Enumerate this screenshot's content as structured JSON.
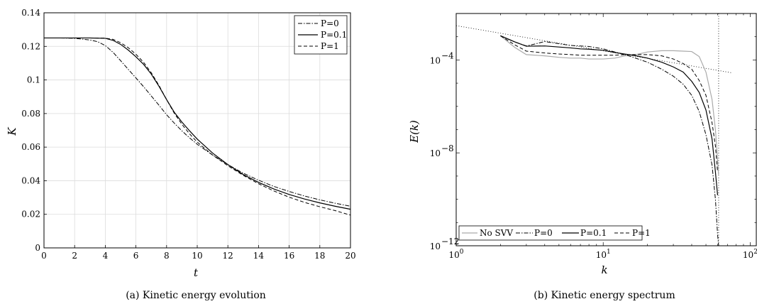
{
  "chart_data": [
    {
      "type": "line",
      "caption": "(a)  Kinetic energy evolution",
      "title": "",
      "xlabel": "t",
      "ylabel": "K",
      "xlim": [
        0,
        20
      ],
      "ylim": [
        0,
        0.14
      ],
      "xticks": [
        0,
        2,
        4,
        6,
        8,
        10,
        12,
        14,
        16,
        18,
        20
      ],
      "yticks": [
        0,
        0.02,
        0.04,
        0.06,
        0.08,
        0.1,
        0.12,
        0.14
      ],
      "xtick_labels": [
        "0",
        "2",
        "4",
        "6",
        "8",
        "10",
        "12",
        "14",
        "16",
        "18",
        "20"
      ],
      "ytick_labels": [
        "0",
        "0.02",
        "0.04",
        "0.06",
        "0.08",
        "0.1",
        "0.12",
        "0.14"
      ],
      "grid": true,
      "legend": "top-right",
      "series": [
        {
          "name": "P=0",
          "style": "dashdot",
          "x": [
            0,
            1,
            2,
            3,
            3.5,
            4,
            4.5,
            5,
            5.5,
            6,
            6.5,
            7,
            7.5,
            8,
            8.5,
            9,
            9.5,
            10,
            11,
            12,
            13,
            14,
            15,
            16,
            17,
            18,
            19,
            20
          ],
          "y": [
            0.125,
            0.125,
            0.1248,
            0.1238,
            0.1228,
            0.1205,
            0.1165,
            0.1115,
            0.1063,
            0.1012,
            0.096,
            0.0905,
            0.085,
            0.0793,
            0.0743,
            0.0697,
            0.0655,
            0.0617,
            0.0553,
            0.0496,
            0.0445,
            0.0403,
            0.0366,
            0.0336,
            0.0309,
            0.0286,
            0.0266,
            0.0248
          ]
        },
        {
          "name": "P=0.1",
          "style": "solid",
          "x": [
            0,
            1,
            2,
            3,
            4,
            4.5,
            5,
            5.5,
            6,
            6.5,
            7,
            7.5,
            8,
            8.5,
            9,
            9.5,
            10,
            11,
            12,
            13,
            14,
            15,
            16,
            17,
            18,
            19,
            20
          ],
          "y": [
            0.125,
            0.125,
            0.125,
            0.125,
            0.1248,
            0.1236,
            0.1212,
            0.1178,
            0.1138,
            0.1093,
            0.1035,
            0.0963,
            0.0883,
            0.0808,
            0.0749,
            0.0697,
            0.0648,
            0.0565,
            0.0496,
            0.0437,
            0.039,
            0.0351,
            0.0318,
            0.0291,
            0.0268,
            0.0248,
            0.023
          ]
        },
        {
          "name": "P=1",
          "style": "dashed",
          "x": [
            0,
            1,
            2,
            3,
            4,
            4.5,
            5,
            5.5,
            6,
            6.5,
            7,
            7.5,
            8,
            8.5,
            9,
            9.5,
            10,
            11,
            12,
            13,
            14,
            15,
            16,
            17,
            18,
            19,
            20
          ],
          "y": [
            0.125,
            0.125,
            0.125,
            0.125,
            0.1249,
            0.1242,
            0.1222,
            0.1192,
            0.1153,
            0.1105,
            0.1043,
            0.0968,
            0.0883,
            0.0802,
            0.0736,
            0.0679,
            0.063,
            0.0553,
            0.0489,
            0.0432,
            0.0382,
            0.0339,
            0.0302,
            0.0271,
            0.0245,
            0.0222,
            0.0195
          ]
        }
      ]
    },
    {
      "type": "line",
      "caption": "(b)  Kinetic energy spectrum",
      "title": "",
      "xlabel": "k",
      "ylabel": "E(k)",
      "xscale": "log",
      "yscale": "log",
      "xlim": [
        1,
        110
      ],
      "ylim": [
        1e-12,
        0.01
      ],
      "xticks": [
        1,
        10,
        100
      ],
      "yticks": [
        1e-12,
        1e-08,
        0.0001
      ],
      "xtick_labels": [
        {
          "base": "10",
          "exp": "0"
        },
        {
          "base": "10",
          "exp": "1"
        },
        {
          "base": "10",
          "exp": "2"
        }
      ],
      "ytick_labels": [
        {
          "base": "10",
          "exp": "−12"
        },
        {
          "base": "10",
          "exp": "−8"
        },
        {
          "base": "10",
          "exp": "−4"
        }
      ],
      "grid": false,
      "legend": "bottom",
      "series": [
        {
          "name": "No SVV",
          "style": "solid-gray",
          "x": [
            2,
            2.5,
            3,
            4,
            5,
            6,
            7,
            8,
            10,
            12,
            14,
            16,
            20,
            25,
            30,
            35,
            40,
            45,
            50,
            55,
            58,
            60,
            61
          ],
          "y": [
            0.0011,
            0.00035,
            0.00017,
            0.00015,
            0.00013,
            0.00012,
            0.00012,
            0.00011,
            0.00011,
            0.00012,
            0.00015,
            0.00016,
            0.00022,
            0.00025,
            0.00025,
            0.00024,
            0.00023,
            0.00014,
            3e-05,
            2e-06,
            1e-07,
            5e-09,
            1e-09
          ]
        },
        {
          "name": "P=0",
          "style": "dashdot",
          "x": [
            2,
            2.5,
            3,
            3.5,
            4,
            5,
            6,
            7,
            8,
            10,
            12,
            14,
            16,
            20,
            25,
            30,
            35,
            40,
            45,
            50,
            55,
            58,
            60,
            61
          ],
          "y": [
            0.0011,
            0.0006,
            0.0004,
            0.0005,
            0.00062,
            0.0005,
            0.00042,
            0.0004,
            0.00038,
            0.0003,
            0.00022,
            0.00017,
            0.00013,
            8e-05,
            4e-05,
            2e-05,
            9e-06,
            3e-06,
            6e-07,
            6e-08,
            3e-09,
            1e-10,
            3e-12,
            1e-12
          ]
        },
        {
          "name": "P=0.1",
          "style": "solid",
          "x": [
            2,
            2.5,
            3,
            4,
            5,
            6,
            7,
            8,
            10,
            12,
            14,
            16,
            20,
            25,
            30,
            35,
            40,
            45,
            50,
            55,
            58,
            60
          ],
          "y": [
            0.0011,
            0.0006,
            0.00039,
            0.0004,
            0.00036,
            0.00033,
            0.0003,
            0.00029,
            0.00026,
            0.00021,
            0.00018,
            0.00016,
            0.00012,
            8e-05,
            5e-05,
            3e-05,
            1.2e-05,
            4e-06,
            7e-07,
            4e-08,
            1.5e-09,
            1.5e-10
          ]
        },
        {
          "name": "P=1",
          "style": "dashed",
          "x": [
            2,
            2.5,
            3,
            4,
            5,
            6,
            7,
            8,
            10,
            12,
            14,
            16,
            20,
            25,
            30,
            35,
            40,
            45,
            50,
            55,
            58,
            60
          ],
          "y": [
            0.0011,
            0.00045,
            0.00024,
            0.0002,
            0.00018,
            0.00017,
            0.00016,
            0.00016,
            0.00016,
            0.00016,
            0.00017,
            0.00017,
            0.00017,
            0.00015,
            0.00011,
            7e-05,
            4e-05,
            1.3e-05,
            3e-06,
            2e-07,
            2e-08,
            1.5e-09
          ]
        }
      ],
      "reference_lines": [
        {
          "kind": "power-law",
          "x": [
            1,
            75
          ],
          "y": [
            0.003,
            2.8e-05
          ],
          "style": "dotted"
        },
        {
          "kind": "vertical",
          "x": 61,
          "style": "dotted"
        }
      ]
    }
  ]
}
